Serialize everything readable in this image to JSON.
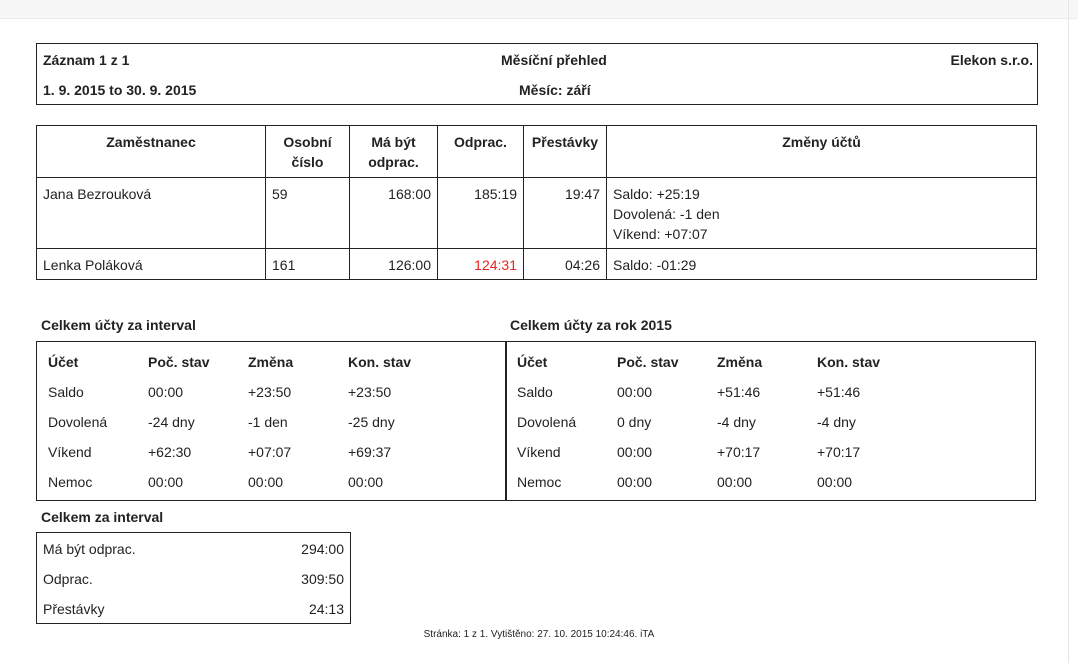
{
  "header": {
    "record": "Záznam 1 z 1",
    "title": "Měsíční přehled",
    "company": "Elekon s.r.o.",
    "period": "1. 9. 2015 to 30. 9. 2015",
    "month": "Měsíc: září"
  },
  "employees": {
    "columns": [
      "Zaměstnanec",
      "Osobní číslo",
      "Má být odprac.",
      "Odprac.",
      "Přestávky",
      "Změny účtů"
    ],
    "col_lines": [
      [
        "Zaměstnanec"
      ],
      [
        "Osobní",
        "číslo"
      ],
      [
        "Má být",
        "odprac."
      ],
      [
        "Odprac."
      ],
      [
        "Přestávky"
      ],
      [
        "Změny účtů"
      ]
    ],
    "rows": [
      {
        "name": "Jana Bezrouková",
        "id": "59",
        "planned": "168:00",
        "worked": "185:19",
        "worked_highlight": false,
        "breaks": "19:47",
        "changes": [
          "Saldo: +25:19",
          "Dovolená: -1 den",
          "Víkend: +07:07"
        ]
      },
      {
        "name": "Lenka Poláková",
        "id": "161",
        "planned": "126:00",
        "worked": "124:31",
        "worked_highlight": true,
        "breaks": "04:26",
        "changes": [
          "Saldo: -01:29"
        ]
      }
    ]
  },
  "interval_accounts": {
    "title": "Celkem účty za interval",
    "headers": [
      "Účet",
      "Poč. stav",
      "Změna",
      "Kon. stav"
    ],
    "rows": [
      [
        "Saldo",
        "00:00",
        "+23:50",
        "+23:50"
      ],
      [
        "Dovolená",
        "-24 dny",
        "-1 den",
        "-25 dny"
      ],
      [
        "Víkend",
        "+62:30",
        "+07:07",
        "+69:37"
      ],
      [
        "Nemoc",
        "00:00",
        "00:00",
        "00:00"
      ]
    ]
  },
  "year_accounts": {
    "title": "Celkem účty za rok 2015",
    "headers": [
      "Účet",
      "Poč. stav",
      "Změna",
      "Kon. stav"
    ],
    "rows": [
      [
        "Saldo",
        "00:00",
        "+51:46",
        "+51:46"
      ],
      [
        "Dovolená",
        "0 dny",
        "-4 dny",
        "-4 dny"
      ],
      [
        "Víkend",
        "00:00",
        "+70:17",
        "+70:17"
      ],
      [
        "Nemoc",
        "00:00",
        "00:00",
        "00:00"
      ]
    ]
  },
  "interval_totals": {
    "title": "Celkem za interval",
    "rows": [
      {
        "label": "Má být odprac.",
        "value": "294:00"
      },
      {
        "label": "Odprac.",
        "value": "309:50"
      },
      {
        "label": "Přestávky",
        "value": "24:13"
      }
    ]
  },
  "footer": "Stránka: 1 z 1. Vytištěno: 27. 10. 2015 10:24:46. iTA",
  "colors": {
    "highlight": "#e5251f",
    "border": "#222222"
  }
}
